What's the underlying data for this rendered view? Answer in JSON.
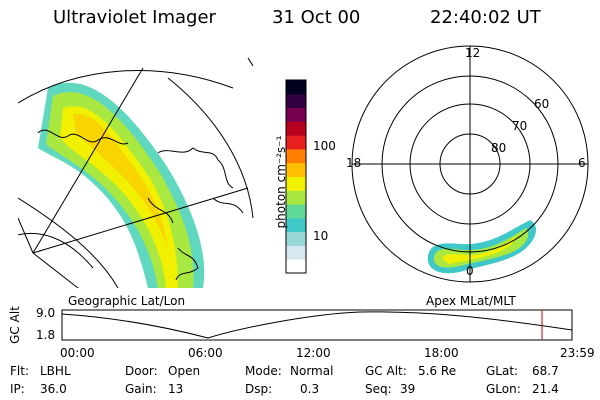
{
  "header": {
    "instrument": "Ultraviolet Imager",
    "date": "31 Oct 00",
    "time": "22:40:02 UT"
  },
  "colorbar": {
    "unit_label": "photon cm⁻²s⁻¹",
    "tick_100": "100",
    "tick_10": "10",
    "colors": [
      "#ffffff",
      "#d8e8f0",
      "#98d8d8",
      "#40c8c8",
      "#60d898",
      "#a8e840",
      "#f0f000",
      "#ffc000",
      "#ff8000",
      "#e82020",
      "#b80020",
      "#780050",
      "#300040",
      "#000020"
    ]
  },
  "geo_panel": {
    "label": "Geographic Lat/Lon"
  },
  "polar_plot": {
    "label": "Apex MLat/MLT",
    "mlt_top": "12",
    "mlt_left": "18",
    "mlt_right": "6",
    "mlt_bottom": "0",
    "lat_60": "60",
    "lat_70": "70",
    "lat_80": "80"
  },
  "altitude_plot": {
    "ylabel": "GC Alt",
    "ymax_label": "9.0",
    "ymin_label": "1.8",
    "x_ticks": [
      "00:00",
      "06:00",
      "12:00",
      "18:00",
      "23:59"
    ],
    "current_time_marker_color": "#c00000"
  },
  "info": {
    "flt_label": "Flt:",
    "flt_value": "LBHL",
    "ip_label": "IP:",
    "ip_value": "36.0",
    "door_label": "Door:",
    "door_value": "Open",
    "gain_label": "Gain:",
    "gain_value": "13",
    "mode_label": "Mode:",
    "mode_value": "Normal",
    "dsp_label": "Dsp:",
    "dsp_value": "0.3",
    "gcalt_label": "GC Alt:",
    "gcalt_value": "5.6 Re",
    "seq_label": "Seq:",
    "seq_value": "39",
    "glat_label": "GLat:",
    "glat_value": "68.7",
    "glon_label": "GLon:",
    "glon_value": "21.4"
  }
}
